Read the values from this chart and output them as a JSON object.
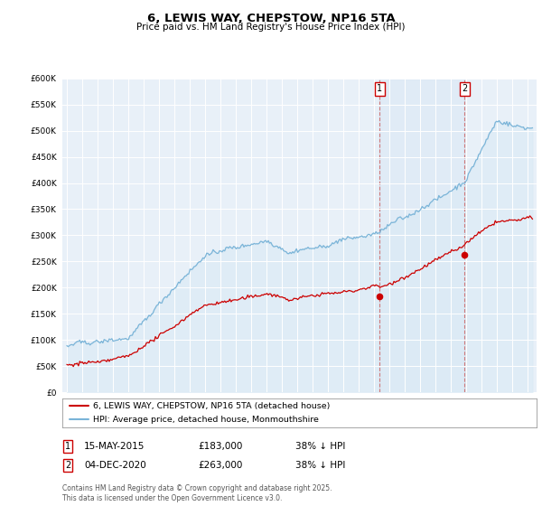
{
  "title": "6, LEWIS WAY, CHEPSTOW, NP16 5TA",
  "subtitle": "Price paid vs. HM Land Registry's House Price Index (HPI)",
  "ylim": [
    0,
    600000
  ],
  "ytick_step": 50000,
  "hpi_color": "#7ab4d8",
  "hpi_fill_color": "#daeaf5",
  "price_color": "#cc0000",
  "marker1_x": 2015.37,
  "marker2_x": 2020.92,
  "legend_line1": "6, LEWIS WAY, CHEPSTOW, NP16 5TA (detached house)",
  "legend_line2": "HPI: Average price, detached house, Monmouthshire",
  "annotation1_date": "15-MAY-2015",
  "annotation1_price": "£183,000",
  "annotation1_pct": "38% ↓ HPI",
  "annotation2_date": "04-DEC-2020",
  "annotation2_price": "£263,000",
  "annotation2_pct": "38% ↓ HPI",
  "footnote": "Contains HM Land Registry data © Crown copyright and database right 2025.\nThis data is licensed under the Open Government Licence v3.0.",
  "background_color": "#e8f0f8",
  "grid_color": "white",
  "sale1_price": 183000,
  "sale2_price": 263000
}
